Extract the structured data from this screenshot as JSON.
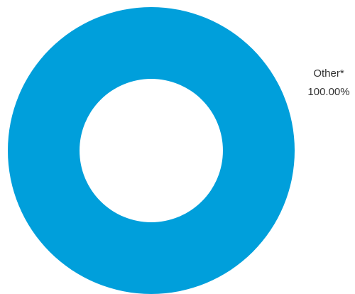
{
  "chart_data": {
    "type": "pie",
    "donut": true,
    "categories": [
      "Other*"
    ],
    "values": [
      100
    ],
    "value_labels": [
      "100.00%"
    ],
    "colors": [
      "#009fdb"
    ]
  }
}
